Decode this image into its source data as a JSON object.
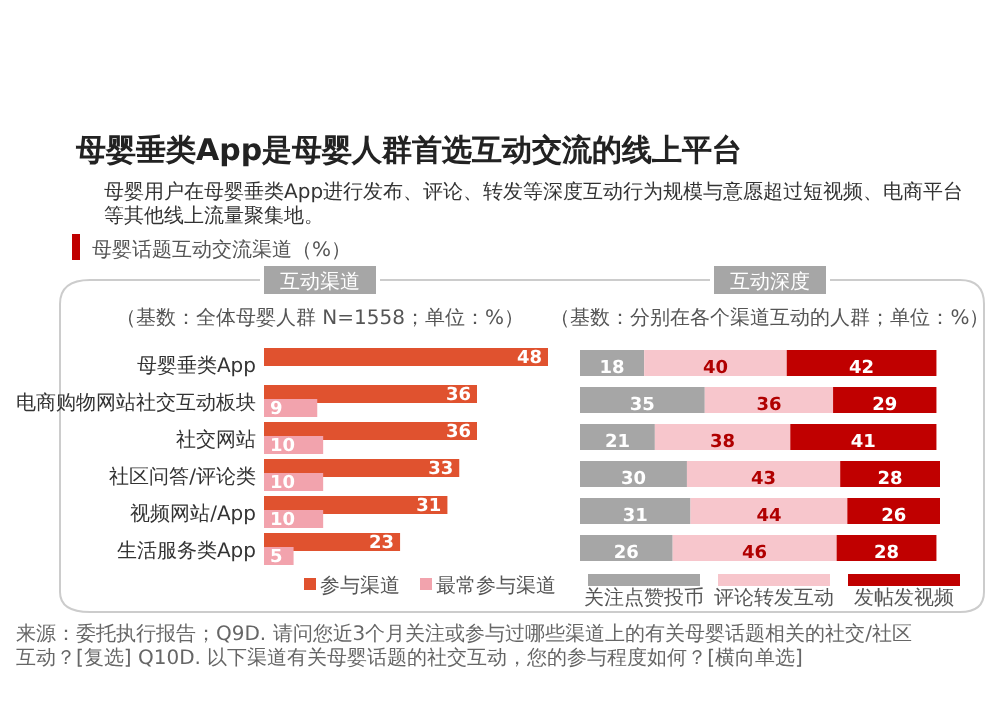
{
  "chart_data": [
    {
      "type": "bar",
      "orientation": "horizontal",
      "title": "母婴垂类App是母婴人群首选互动交流的线上平台",
      "subtitle": "母婴用户在母婴垂类App进行发布、评论、转发等深度互动行为规模与意愿超过短视频、电商平台等其他线上流量聚集地。",
      "annotations": [
        "母婴话题互动交流渠道（%）",
        "互动渠道",
        "（基数：全体母婴人群 N=1558；单位：%）",
        "来源：委托执行报告；Q9D. 请问您近3个月关注或参与过哪些渠道上的有关母婴话题相关的社交/社区互动？[复选] Q10D. 以下渠道有关母婴话题的社交互动，您的参与程度如何？[横向单选]"
      ],
      "categories": [
        "母婴垂类App",
        "电商购物网站社交互动板块",
        "社交网站",
        "社区问答/评论类",
        "视频网站/App",
        "生活服务类App"
      ],
      "series": [
        {
          "name": "参与渠道",
          "color": "#e0522f",
          "values": [
            48,
            36,
            36,
            33,
            31,
            23
          ]
        },
        {
          "name": "最常参与渠道",
          "color": "#f2a3ad",
          "values": [
            null,
            9,
            10,
            10,
            10,
            5
          ]
        }
      ],
      "data_labels": true,
      "legend": "bottom"
    },
    {
      "type": "bar",
      "orientation": "horizontal",
      "stacked": true,
      "title": "互动深度",
      "subtitle": "（基数：分别在各个渠道互动的人群；单位：%）",
      "categories": [
        null,
        null,
        null,
        null,
        null,
        null
      ],
      "series": [
        {
          "name": "关注点赞投币",
          "color": "#a6a6a6",
          "values": [
            18,
            35,
            21,
            30,
            31,
            26
          ]
        },
        {
          "name": "评论转发互动",
          "color": "#f7c6cc",
          "values": [
            40,
            36,
            38,
            43,
            44,
            46
          ]
        },
        {
          "name": "发帖发视频",
          "color": "#c00000",
          "values": [
            42,
            29,
            41,
            28,
            26,
            28
          ]
        }
      ],
      "data_labels": true,
      "legend": "bottom"
    }
  ]
}
